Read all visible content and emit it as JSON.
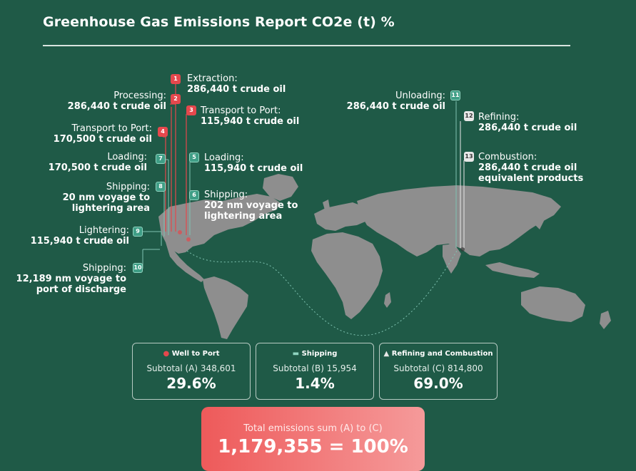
{
  "title": "Greenhouse Gas Emissions Report CO2e (t) %",
  "steps": [
    {
      "num": "1",
      "name": "Extraction:",
      "detail": "286,440 t crude oil"
    },
    {
      "num": "2",
      "name": "Processing:",
      "detail": "286,440 t crude oil"
    },
    {
      "num": "3",
      "name": "Transport to Port:",
      "detail": "115,940 t crude oil"
    },
    {
      "num": "4",
      "name": "Transport to Port:",
      "detail": "170,500 t crude oil"
    },
    {
      "num": "5",
      "name": "Loading:",
      "detail": "115,940 t crude oil"
    },
    {
      "num": "6",
      "name": "Shipping:",
      "detail": "202 nm voyage to",
      "detail2": "lightering area"
    },
    {
      "num": "7",
      "name": "Loading:",
      "detail": "170,500 t crude oil"
    },
    {
      "num": "8",
      "name": "Shipping:",
      "detail": "20 nm voyage to",
      "detail2": "lightering area"
    },
    {
      "num": "9",
      "name": "Lightering:",
      "detail": "115,940 t crude oil"
    },
    {
      "num": "10",
      "name": "Shipping:",
      "detail": "12,189 nm voyage to",
      "detail2": "port of discharge"
    },
    {
      "num": "11",
      "name": "Unloading:",
      "detail": "286,440 t crude oil"
    },
    {
      "num": "12",
      "name": "Refining:",
      "detail": "286,440 t crude oil"
    },
    {
      "num": "13",
      "name": "Combustion:",
      "detail": "286,440 t crude oil",
      "detail2": "equivalent products"
    }
  ],
  "summary": [
    {
      "title": "Well to Port",
      "icon": "oil-drop-icon",
      "subtotal": "Subtotal (A) 348,601",
      "percent": "29.6%"
    },
    {
      "title": "Shipping",
      "icon": "tanker-ship-icon",
      "subtotal": "Subtotal (B) 15,954",
      "percent": "1.4%"
    },
    {
      "title": "Refining and Combustion",
      "icon": "refinery-icon",
      "subtotal": "Subtotal (C) 814,800",
      "percent": "69.0%"
    }
  ],
  "total": {
    "label": "Total emissions sum (A) to (C)",
    "value": "1,179,355 = 100%"
  },
  "colors": {
    "background": "#1f5a47",
    "land": "#8e8e8e",
    "well_to_port": "#e5484d",
    "shipping": "#3f9e86",
    "refining": "#e8e8e8",
    "total_start": "#ee5a5a",
    "total_end": "#f59a9a"
  }
}
